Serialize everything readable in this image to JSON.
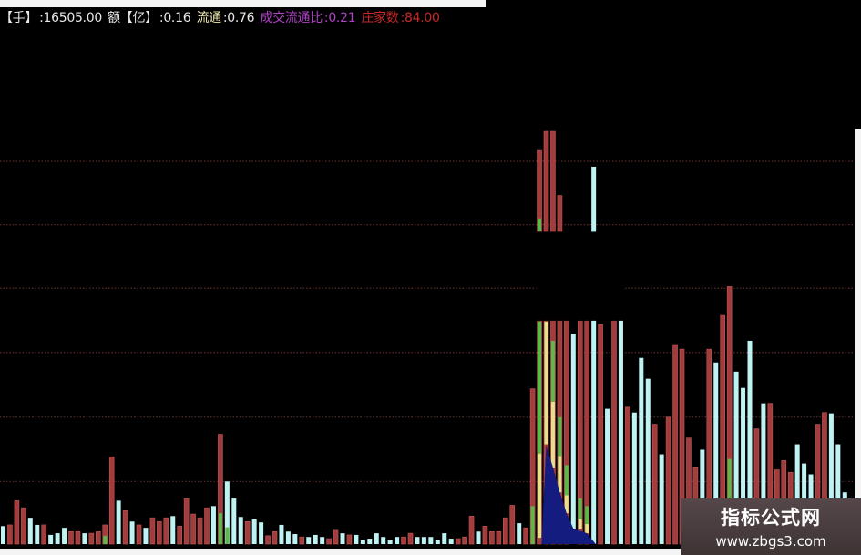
{
  "header": {
    "vol_label": "【手】",
    "vol_value": ":16505.00",
    "amt_label": "额【亿】",
    "amt_value": ":0.16",
    "float_label": "流通",
    "float_value": ":0.76",
    "ratio_label": "成交流通比",
    "ratio_value": ":0.21",
    "count_label": "庄家数",
    "count_value": ":84.00"
  },
  "watermark": {
    "title": "指标公式网",
    "url": "www.zbgs3.com"
  },
  "colors": {
    "up": "#a33c3c",
    "down": "#bff2f2",
    "green": "#5cb848",
    "yellow": "#e6df8c",
    "blue": "#141c80",
    "grid": "#5a2a2a"
  },
  "chart_data": {
    "type": "bar",
    "ylim": [
      0,
      100
    ],
    "grid": true,
    "gridlines": [
      15,
      30.4,
      45.9,
      61.3,
      76.5,
      91.7
    ],
    "masked_band": [
      53.3,
      74.8
    ],
    "bars": [
      {
        "v": 4.3,
        "c": "c"
      },
      {
        "v": 4.6,
        "c": "r"
      },
      {
        "v": 10.4,
        "c": "r"
      },
      {
        "v": 8.7,
        "c": "r"
      },
      {
        "v": 6.3,
        "c": "c"
      },
      {
        "v": 4.6,
        "c": "c"
      },
      {
        "v": 4.6,
        "c": "r"
      },
      {
        "v": 2.2,
        "c": "c"
      },
      {
        "v": 2.6,
        "c": "c"
      },
      {
        "v": 3.9,
        "c": "c"
      },
      {
        "v": 3.0,
        "c": "r"
      },
      {
        "v": 3.0,
        "c": "r"
      },
      {
        "v": 2.6,
        "c": "c"
      },
      {
        "v": 2.6,
        "c": "r"
      },
      {
        "v": 3.0,
        "c": "r"
      },
      {
        "v": 4.6,
        "c": "r",
        "seg": [
          [
            0,
            2,
            "g"
          ]
        ]
      },
      {
        "v": 20.9,
        "c": "r"
      },
      {
        "v": 10.4,
        "c": "c"
      },
      {
        "v": 8.0,
        "c": "r"
      },
      {
        "v": 5.4,
        "c": "c"
      },
      {
        "v": 4.6,
        "c": "r"
      },
      {
        "v": 3.9,
        "c": "c"
      },
      {
        "v": 6.3,
        "c": "r"
      },
      {
        "v": 5.4,
        "c": "r"
      },
      {
        "v": 6.3,
        "c": "r"
      },
      {
        "v": 6.7,
        "c": "c"
      },
      {
        "v": 4.3,
        "c": "r"
      },
      {
        "v": 10.9,
        "c": "r"
      },
      {
        "v": 7.2,
        "c": "r"
      },
      {
        "v": 6.3,
        "c": "r"
      },
      {
        "v": 8.7,
        "c": "r"
      },
      {
        "v": 9.1,
        "c": "c"
      },
      {
        "v": 26.3,
        "c": "r",
        "seg": [
          [
            0,
            7.4,
            "g"
          ]
        ]
      },
      {
        "v": 15.0,
        "c": "c",
        "seg": [
          [
            0,
            4,
            "g"
          ]
        ]
      },
      {
        "v": 10.9,
        "c": "c"
      },
      {
        "v": 6.5,
        "c": "c"
      },
      {
        "v": 5.4,
        "c": "r"
      },
      {
        "v": 5.9,
        "c": "c"
      },
      {
        "v": 5.2,
        "c": "c"
      },
      {
        "v": 2.0,
        "c": "r"
      },
      {
        "v": 3.0,
        "c": "r"
      },
      {
        "v": 4.6,
        "c": "c"
      },
      {
        "v": 3.0,
        "c": "c"
      },
      {
        "v": 2.4,
        "c": "c"
      },
      {
        "v": 1.7,
        "c": "r"
      },
      {
        "v": 1.7,
        "c": "c"
      },
      {
        "v": 2.2,
        "c": "c"
      },
      {
        "v": 1.7,
        "c": "c"
      },
      {
        "v": 1.3,
        "c": "r"
      },
      {
        "v": 3.3,
        "c": "r"
      },
      {
        "v": 2.6,
        "c": "c"
      },
      {
        "v": 2.2,
        "c": "r"
      },
      {
        "v": 2.2,
        "c": "c"
      },
      {
        "v": 0.9,
        "c": "c"
      },
      {
        "v": 1.3,
        "c": "c"
      },
      {
        "v": 2.6,
        "c": "c"
      },
      {
        "v": 1.7,
        "c": "c"
      },
      {
        "v": 0.9,
        "c": "c"
      },
      {
        "v": 1.7,
        "c": "c"
      },
      {
        "v": 1.7,
        "c": "r"
      },
      {
        "v": 2.6,
        "c": "r"
      },
      {
        "v": 1.7,
        "c": "c"
      },
      {
        "v": 1.7,
        "c": "c"
      },
      {
        "v": 1.7,
        "c": "c"
      },
      {
        "v": 0.9,
        "c": "c"
      },
      {
        "v": 2.6,
        "c": "c"
      },
      {
        "v": 1.3,
        "c": "c"
      },
      {
        "v": 1.3,
        "c": "r"
      },
      {
        "v": 1.7,
        "c": "r"
      },
      {
        "v": 6.7,
        "c": "r"
      },
      {
        "v": 3.0,
        "c": "c"
      },
      {
        "v": 4.3,
        "c": "r"
      },
      {
        "v": 3.0,
        "c": "r"
      },
      {
        "v": 3.0,
        "c": "r"
      },
      {
        "v": 6.3,
        "c": "r"
      },
      {
        "v": 9.3,
        "c": "r"
      },
      {
        "v": 5.0,
        "c": "c"
      },
      {
        "v": 3.9,
        "c": "r"
      },
      {
        "v": 37.2,
        "c": "r",
        "seg": [
          [
            0,
            9.1,
            "g"
          ]
        ]
      },
      {
        "v": 94.3,
        "c": "r",
        "seg": [
          [
            1.5,
            21.7,
            "y"
          ],
          [
            21.7,
            53.3,
            "g"
          ],
          [
            75,
            78,
            "g"
          ]
        ]
      },
      {
        "v": 98.9,
        "c": "r",
        "seg": [
          [
            23.9,
            53.3,
            "y"
          ]
        ]
      },
      {
        "v": 98.9,
        "c": "r",
        "seg": [
          [
            18.3,
            34.1,
            "y"
          ],
          [
            34.1,
            48.7,
            "g"
          ]
        ]
      },
      {
        "v": 83.5,
        "c": "r",
        "seg": [
          [
            12.4,
            21.1,
            "y"
          ],
          [
            21.1,
            30.4,
            "g"
          ]
        ]
      },
      {
        "v": 60,
        "c": "r",
        "seg": [
          [
            7.4,
            11.7,
            "y"
          ],
          [
            11.7,
            18.9,
            "g"
          ]
        ]
      },
      {
        "v": 50.4,
        "c": "c"
      },
      {
        "v": 60,
        "c": "r",
        "seg": [
          [
            3.7,
            5.9,
            "y"
          ],
          [
            5.9,
            10.9,
            "g"
          ]
        ]
      },
      {
        "v": 60,
        "c": "r",
        "seg": [
          [
            2.6,
            4.8,
            "y"
          ],
          [
            4.8,
            9.1,
            "g"
          ]
        ]
      },
      {
        "v": 90.4,
        "c": "c"
      },
      {
        "v": 52.6,
        "c": "r"
      },
      {
        "v": 32.4,
        "c": "c"
      },
      {
        "v": 60,
        "c": "r"
      },
      {
        "v": 60,
        "c": "c"
      },
      {
        "v": 32.8,
        "c": "r"
      },
      {
        "v": 31.5,
        "c": "c"
      },
      {
        "v": 44.6,
        "c": "c"
      },
      {
        "v": 39.6,
        "c": "c"
      },
      {
        "v": 28.7,
        "c": "r"
      },
      {
        "v": 21.5,
        "c": "c"
      },
      {
        "v": 30.4,
        "c": "r"
      },
      {
        "v": 47.6,
        "c": "r"
      },
      {
        "v": 46.7,
        "c": "r"
      },
      {
        "v": 25.4,
        "c": "r"
      },
      {
        "v": 18.5,
        "c": "r"
      },
      {
        "v": 22.6,
        "c": "c"
      },
      {
        "v": 46.7,
        "c": "r"
      },
      {
        "v": 43.5,
        "c": "c"
      },
      {
        "v": 54.8,
        "c": "r"
      },
      {
        "v": 61.7,
        "c": "r",
        "seg": [
          [
            0,
            20.4,
            "g"
          ]
        ]
      },
      {
        "v": 41.3,
        "c": "c"
      },
      {
        "v": 37.4,
        "c": "c"
      },
      {
        "v": 48.7,
        "c": "c"
      },
      {
        "v": 27.6,
        "c": "r"
      },
      {
        "v": 33.7,
        "c": "c"
      },
      {
        "v": 33.7,
        "c": "r"
      },
      {
        "v": 17.8,
        "c": "r"
      },
      {
        "v": 20.0,
        "c": "r"
      },
      {
        "v": 17.2,
        "c": "r"
      },
      {
        "v": 23.9,
        "c": "c"
      },
      {
        "v": 19.3,
        "c": "c"
      },
      {
        "v": 16.7,
        "c": "c"
      },
      {
        "v": 28.7,
        "c": "r"
      },
      {
        "v": 31.5,
        "c": "r"
      },
      {
        "v": 31.3,
        "c": "c"
      },
      {
        "v": 23.9,
        "c": "c"
      },
      {
        "v": 12.4,
        "c": "c"
      }
    ],
    "area": [
      [
        79.3,
        0
      ],
      [
        80,
        23.7
      ],
      [
        81,
        18.3
      ],
      [
        82,
        12.4
      ],
      [
        83,
        7.4
      ],
      [
        84,
        3.7
      ],
      [
        86,
        2.6
      ],
      [
        87.3,
        0
      ]
    ]
  }
}
